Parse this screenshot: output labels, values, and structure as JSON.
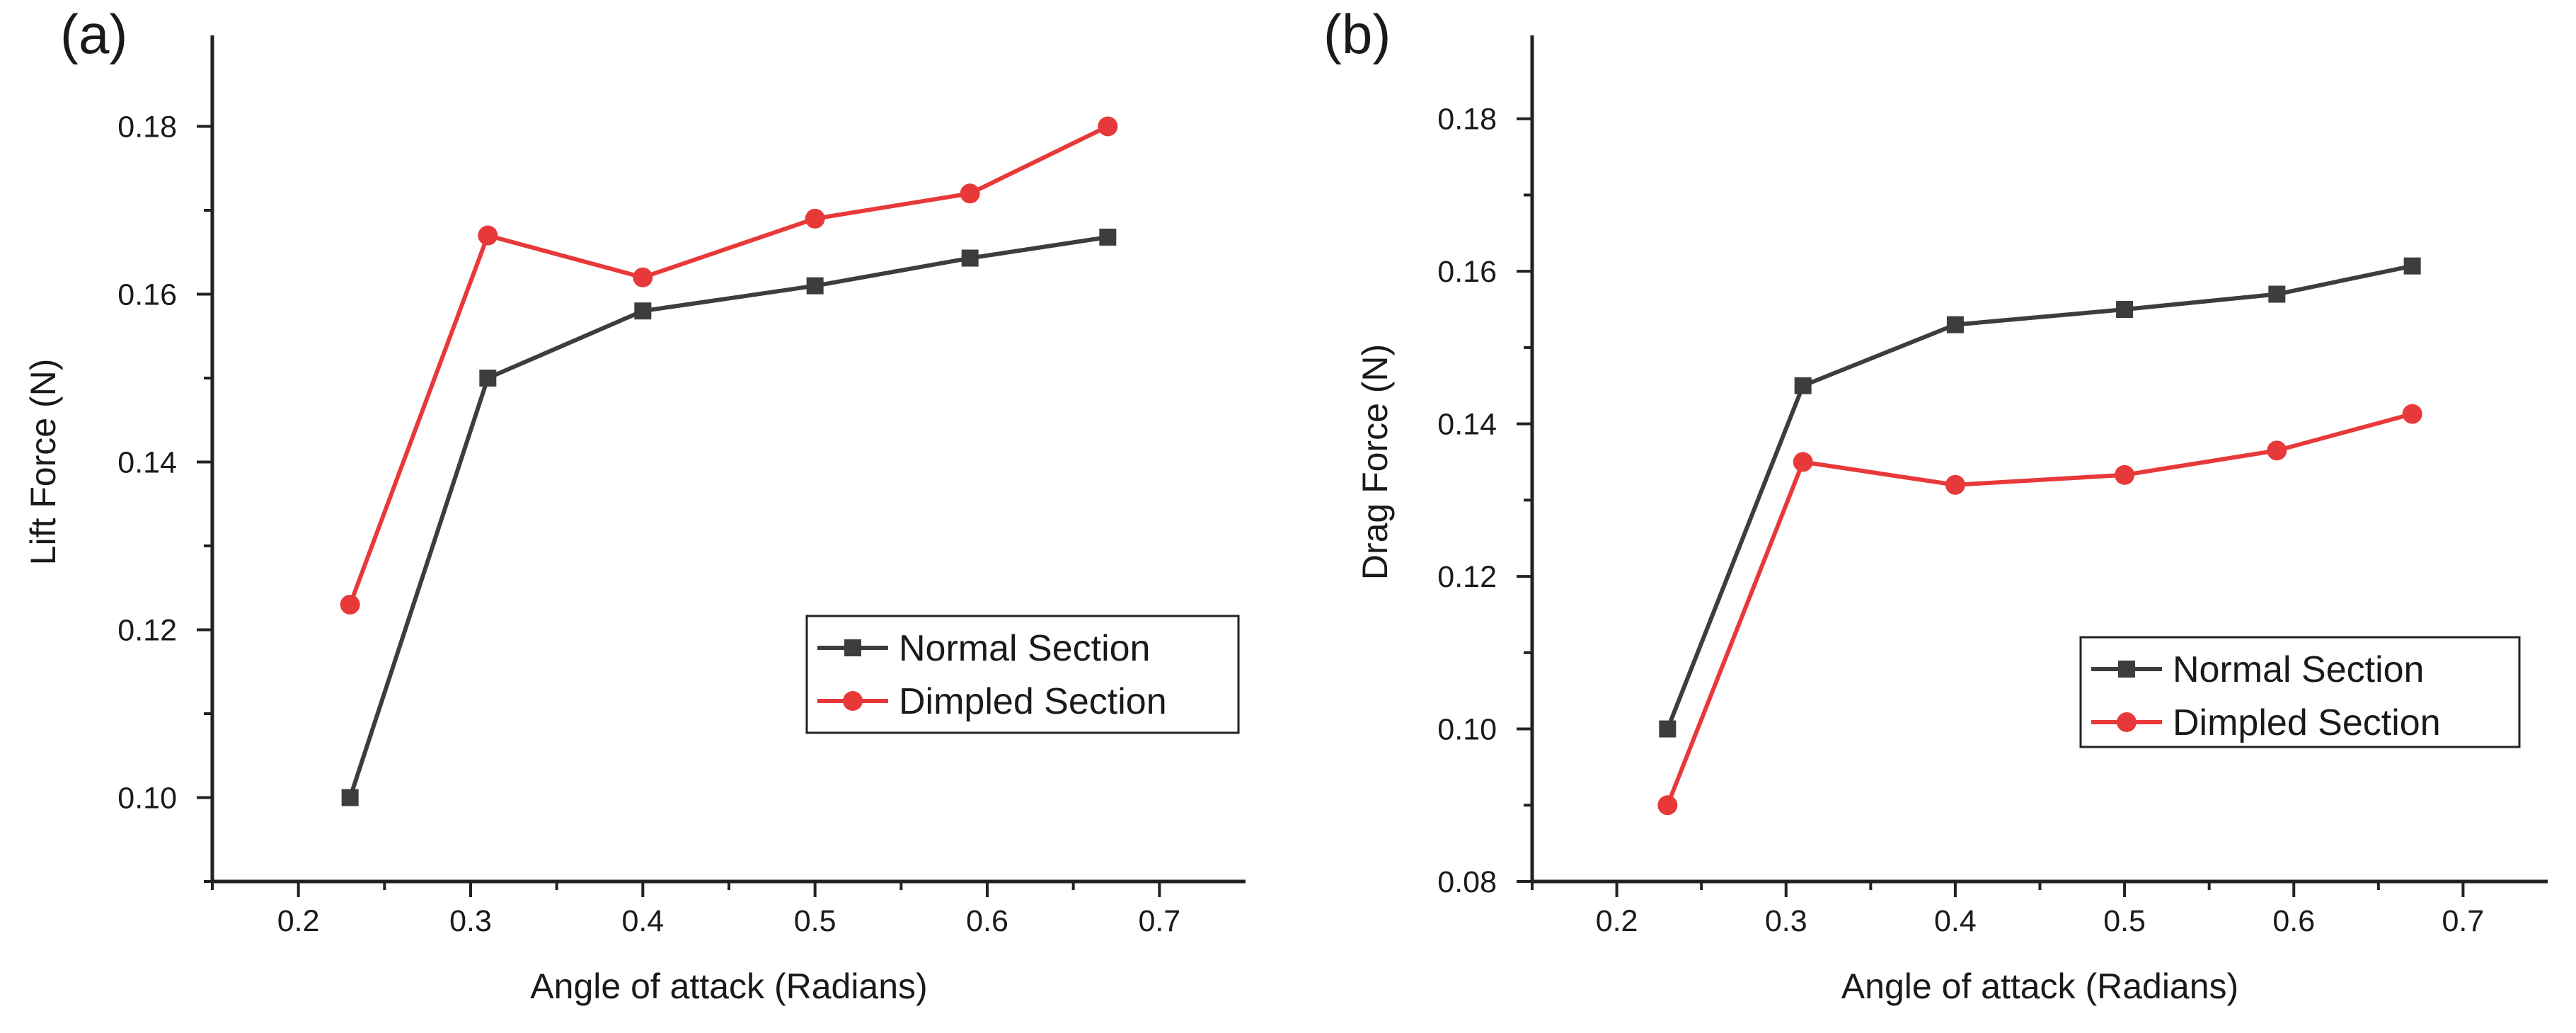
{
  "chart_data": [
    {
      "panel": "(a)",
      "type": "line",
      "xlabel": "Angle of attack (Radians)",
      "ylabel": "Lift Force (N)",
      "xlim": [
        0.15,
        0.75
      ],
      "ylim": [
        0.09,
        0.19
      ],
      "xticks": [
        "0.2",
        "0.3",
        "0.4",
        "0.5",
        "0.6",
        "0.7"
      ],
      "yticks": [
        "0.10",
        "0.12",
        "0.14",
        "0.16",
        "0.18"
      ],
      "legend_position": "lower-right",
      "x": [
        0.23,
        0.31,
        0.4,
        0.5,
        0.59,
        0.67
      ],
      "series": [
        {
          "name": "Normal Section",
          "color": "#3d3d3d",
          "marker": "square",
          "values": [
            0.1,
            0.15,
            0.158,
            0.161,
            0.1643,
            0.1668
          ]
        },
        {
          "name": "Dimpled Section",
          "color": "#e8393a",
          "marker": "circle",
          "values": [
            0.123,
            0.167,
            0.162,
            0.169,
            0.172,
            0.18
          ]
        }
      ]
    },
    {
      "panel": "(b)",
      "type": "line",
      "xlabel": "Angle of attack (Radians)",
      "ylabel": "Drag Force (N)",
      "xlim": [
        0.15,
        0.75
      ],
      "ylim": [
        0.08,
        0.19
      ],
      "xticks": [
        "0.2",
        "0.3",
        "0.4",
        "0.5",
        "0.6",
        "0.7"
      ],
      "yticks": [
        "0.08",
        "0.10",
        "0.12",
        "0.14",
        "0.16",
        "0.18"
      ],
      "legend_position": "lower-right",
      "x": [
        0.23,
        0.31,
        0.4,
        0.5,
        0.59,
        0.67
      ],
      "series": [
        {
          "name": "Normal Section",
          "color": "#3d3d3d",
          "marker": "square",
          "values": [
            0.1,
            0.145,
            0.153,
            0.155,
            0.157,
            0.1607
          ]
        },
        {
          "name": "Dimpled Section",
          "color": "#e8393a",
          "marker": "circle",
          "values": [
            0.09,
            0.135,
            0.132,
            0.1333,
            0.1365,
            0.1413
          ]
        }
      ]
    }
  ]
}
